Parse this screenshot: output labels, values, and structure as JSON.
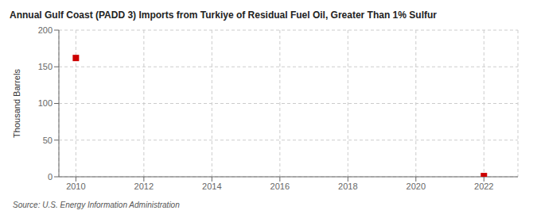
{
  "chart_data": {
    "type": "scatter",
    "title": "Annual Gulf Coast (PADD 3) Imports from Turkiye of Residual Fuel Oil, Greater Than 1% Sulfur",
    "y_label": "Thousand Barrels",
    "annotations": [
      "Source: U.S. Energy Information Administration"
    ],
    "x": [
      2010,
      2022
    ],
    "values": [
      162,
      1
    ],
    "color": "#cc0000",
    "marker": "square",
    "xlim": [
      2009.5,
      2023.0
    ],
    "ylim": [
      0,
      200
    ],
    "xticks": [
      2010,
      2012,
      2014,
      2016,
      2018,
      2020,
      2022
    ],
    "yticks": [
      0,
      50,
      100,
      150,
      200
    ],
    "grid": true
  }
}
